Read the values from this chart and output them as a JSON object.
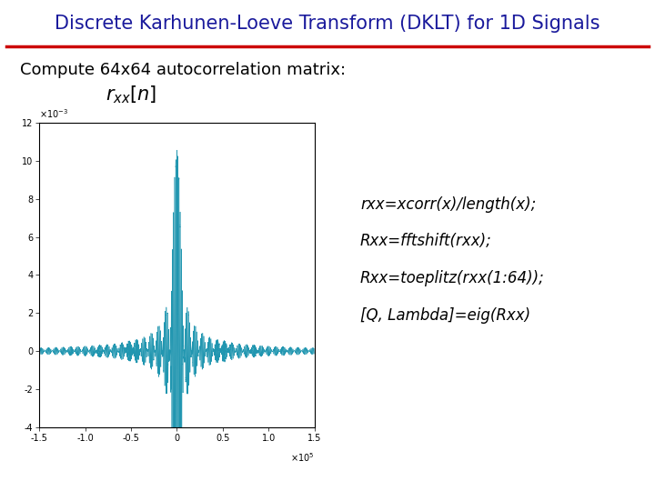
{
  "title": "Discrete Karhunen-Loeve Transform (DKLT) for 1D Signals",
  "title_color": "#1a1a9c",
  "title_fontsize": 15,
  "subtitle": "Compute 64x64 autocorrelation matrix:",
  "subtitle_fontsize": 13,
  "subtitle_color": "#000000",
  "code_lines": [
    "rxx=xcorr(x)/length(x);",
    "Rxx=fftshift(rxx);",
    "Rxx=toeplitz(rxx(1:64));",
    "[Q, Lambda]=eig(Rxx)"
  ],
  "code_fontsize": 12,
  "separator_color": "#cc0000",
  "bg_color": "#ffffff",
  "plot_color": "#2196b0",
  "plot_xlim": [
    -150000,
    150000
  ],
  "plot_ylim_min": -0.004,
  "plot_ylim_max": 0.012,
  "plot_yticks": [
    -4,
    -2,
    0,
    2,
    4,
    6,
    8,
    10,
    12
  ],
  "plot_xticks": [
    -1.5,
    -1.0,
    -0.5,
    0,
    0.5,
    1.0,
    1.5
  ]
}
